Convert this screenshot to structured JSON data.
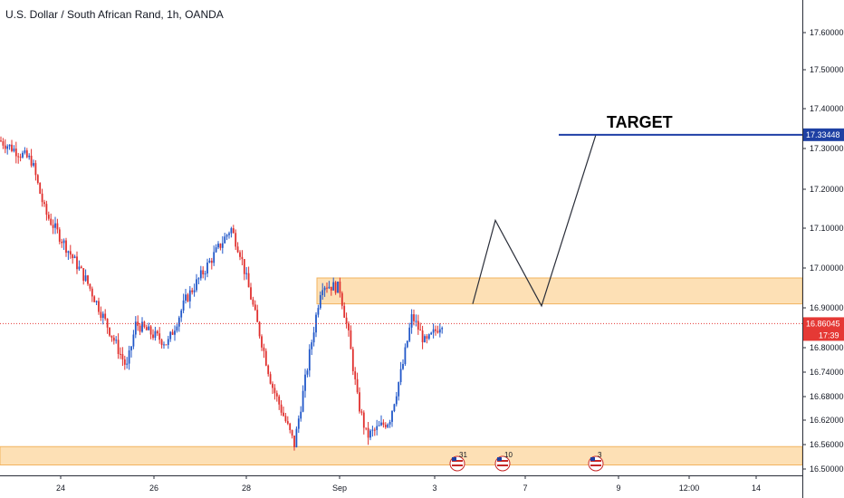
{
  "title": "U.S. Dollar / South African Rand, 1h, OANDA",
  "colors": {
    "up": "#2157c9",
    "down": "#e0302e",
    "zone_fill": "#fde0b5",
    "zone_stroke": "#f2b35f",
    "target_line": "#1f3fa6",
    "price_tag": "#e53935",
    "target_tag": "#1e40a3"
  },
  "chart_data": {
    "type": "candlestick",
    "symbol": "U.S. Dollar / South African Rand",
    "interval": "1h",
    "source": "OANDA",
    "ylim": [
      16.49,
      17.7
    ],
    "x_ticks": [
      "24",
      "26",
      "28",
      "Sep",
      "3",
      "7",
      "9",
      "12:00",
      "14"
    ],
    "y_ticks": [
      "17.60000",
      "17.50000",
      "17.40000",
      "17.30000",
      "17.20000",
      "17.10000",
      "17.00000",
      "16.90000",
      "16.80000",
      "16.74000",
      "16.68000",
      "16.62000",
      "16.56000",
      "16.50000"
    ],
    "y_tick_values": [
      17.6,
      17.5,
      17.4,
      17.3,
      17.2,
      17.1,
      17.0,
      16.9,
      16.8,
      16.74,
      16.68,
      16.62,
      16.56,
      16.5
    ],
    "current_price": {
      "label": "16.86045",
      "value": 16.86045,
      "countdown": "17:39"
    },
    "target": {
      "label": "TARGET",
      "value": 17.33448,
      "tag": "17.33448"
    },
    "zones": [
      {
        "name": "resistance",
        "low": 16.91,
        "high": 16.975
      },
      {
        "name": "support",
        "low": 16.51,
        "high": 16.555
      }
    ],
    "projection_path": [
      16.91,
      17.12,
      16.905,
      17.33448
    ],
    "anchor_path": [
      16.8,
      16.61,
      17.1,
      16.86,
      16.6,
      16.56,
      16.95,
      16.64,
      16.57,
      16.88,
      16.62,
      16.93,
      16.79,
      16.86
    ]
  },
  "events": [
    {
      "name": "us-flag-event",
      "count": "31"
    },
    {
      "name": "us-flag-event",
      "count": "10"
    },
    {
      "name": "us-flag-event",
      "count": "3"
    }
  ]
}
